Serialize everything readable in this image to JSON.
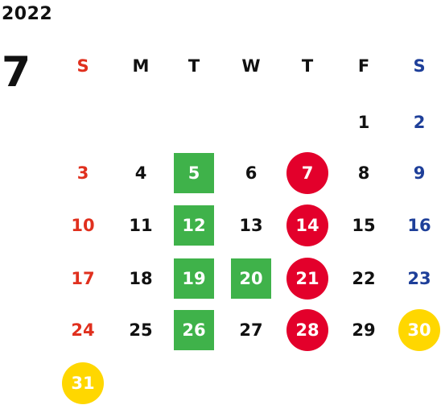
{
  "header": {
    "year": "2022",
    "month": "7"
  },
  "colors": {
    "sunday": "#e0301e",
    "saturday": "#1e3f99",
    "weekday": "#111111",
    "green_mark": "#3fb24a",
    "red_mark": "#e3002b",
    "yellow_mark": "#ffd700"
  },
  "weekdays": [
    "S",
    "M",
    "T",
    "W",
    "T",
    "F",
    "S"
  ],
  "days": [
    {
      "label": "1",
      "col": 5,
      "row": 0,
      "mark": ""
    },
    {
      "label": "2",
      "col": 6,
      "row": 0,
      "mark": ""
    },
    {
      "label": "3",
      "col": 0,
      "row": 1,
      "mark": ""
    },
    {
      "label": "4",
      "col": 1,
      "row": 1,
      "mark": ""
    },
    {
      "label": "5",
      "col": 2,
      "row": 1,
      "mark": "green"
    },
    {
      "label": "6",
      "col": 3,
      "row": 1,
      "mark": ""
    },
    {
      "label": "7",
      "col": 4,
      "row": 1,
      "mark": "red"
    },
    {
      "label": "8",
      "col": 5,
      "row": 1,
      "mark": ""
    },
    {
      "label": "9",
      "col": 6,
      "row": 1,
      "mark": ""
    },
    {
      "label": "10",
      "col": 0,
      "row": 2,
      "mark": ""
    },
    {
      "label": "11",
      "col": 1,
      "row": 2,
      "mark": ""
    },
    {
      "label": "12",
      "col": 2,
      "row": 2,
      "mark": "green"
    },
    {
      "label": "13",
      "col": 3,
      "row": 2,
      "mark": ""
    },
    {
      "label": "14",
      "col": 4,
      "row": 2,
      "mark": "red"
    },
    {
      "label": "15",
      "col": 5,
      "row": 2,
      "mark": ""
    },
    {
      "label": "16",
      "col": 6,
      "row": 2,
      "mark": ""
    },
    {
      "label": "17",
      "col": 0,
      "row": 3,
      "mark": ""
    },
    {
      "label": "18",
      "col": 1,
      "row": 3,
      "mark": ""
    },
    {
      "label": "19",
      "col": 2,
      "row": 3,
      "mark": "green"
    },
    {
      "label": "20",
      "col": 3,
      "row": 3,
      "mark": "green"
    },
    {
      "label": "21",
      "col": 4,
      "row": 3,
      "mark": "red"
    },
    {
      "label": "22",
      "col": 5,
      "row": 3,
      "mark": ""
    },
    {
      "label": "23",
      "col": 6,
      "row": 3,
      "mark": ""
    },
    {
      "label": "24",
      "col": 0,
      "row": 4,
      "mark": ""
    },
    {
      "label": "25",
      "col": 1,
      "row": 4,
      "mark": ""
    },
    {
      "label": "26",
      "col": 2,
      "row": 4,
      "mark": "green"
    },
    {
      "label": "27",
      "col": 3,
      "row": 4,
      "mark": ""
    },
    {
      "label": "28",
      "col": 4,
      "row": 4,
      "mark": "red"
    },
    {
      "label": "29",
      "col": 5,
      "row": 4,
      "mark": ""
    },
    {
      "label": "30",
      "col": 6,
      "row": 4,
      "mark": "yellow"
    },
    {
      "label": "31",
      "col": 0,
      "row": 5,
      "mark": "yellow"
    }
  ]
}
